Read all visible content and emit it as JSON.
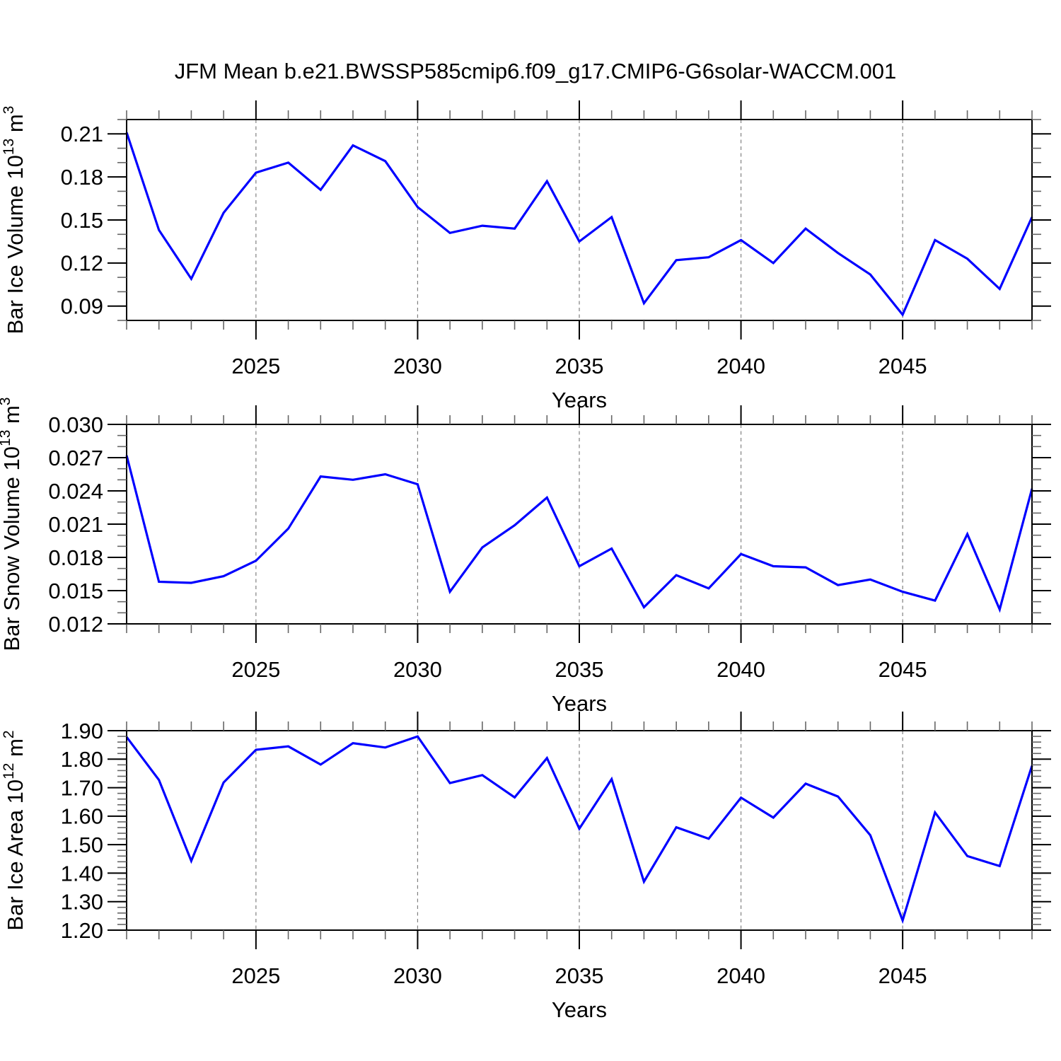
{
  "title": "JFM Mean b.e21.BWSSP585cmip6.f09_g17.CMIP6-G6solar-WACCM.001",
  "style": {
    "line_color": "#0000ff",
    "grid_color": "#808080",
    "axis_color": "#000000",
    "minor_tick_color": "#666666",
    "background": "#ffffff"
  },
  "x_axis": {
    "label": "Years",
    "range": [
      2021,
      2049
    ],
    "major_ticks": [
      2025,
      2030,
      2035,
      2040,
      2045
    ],
    "minor_step": 1,
    "years": [
      2021,
      2022,
      2023,
      2024,
      2025,
      2026,
      2027,
      2028,
      2029,
      2030,
      2031,
      2032,
      2033,
      2034,
      2035,
      2036,
      2037,
      2038,
      2039,
      2040,
      2041,
      2042,
      2043,
      2044,
      2045,
      2046,
      2047,
      2048,
      2049
    ]
  },
  "chart_data": [
    {
      "type": "line",
      "name": "bar-ice-volume",
      "ylabel_plain": "Bar Ice Volume 10^13 m^3",
      "ylabel_segments": [
        {
          "text": "Bar Ice Volume 10",
          "sup": false
        },
        {
          "text": "13",
          "sup": true
        },
        {
          "text": " m",
          "sup": false
        },
        {
          "text": "3",
          "sup": true
        }
      ],
      "xlabel": "Years",
      "ylim": [
        0.08,
        0.22
      ],
      "yticks": [
        0.09,
        0.12,
        0.15,
        0.18,
        0.21
      ],
      "ytick_decimals": 2,
      "yminor_step": 0.01,
      "grid": "vertical-dashed",
      "values": [
        0.211,
        0.143,
        0.109,
        0.155,
        0.183,
        0.19,
        0.171,
        0.202,
        0.191,
        0.159,
        0.141,
        0.146,
        0.144,
        0.177,
        0.135,
        0.152,
        0.092,
        0.122,
        0.124,
        0.136,
        0.12,
        0.144,
        0.127,
        0.112,
        0.084,
        0.136,
        0.123,
        0.102,
        0.152
      ]
    },
    {
      "type": "line",
      "name": "bar-snow-volume",
      "ylabel_plain": "Bar Snow Volume 10^13 m^3",
      "ylabel_segments": [
        {
          "text": "Bar Snow Volume 10",
          "sup": false
        },
        {
          "text": "13",
          "sup": true
        },
        {
          "text": " m",
          "sup": false
        },
        {
          "text": "3",
          "sup": true
        }
      ],
      "xlabel": "Years",
      "ylim": [
        0.012,
        0.03
      ],
      "yticks": [
        0.012,
        0.015,
        0.018,
        0.021,
        0.024,
        0.027,
        0.03
      ],
      "ytick_decimals": 3,
      "yminor_step": 0.001,
      "grid": "vertical-dashed",
      "values": [
        0.0272,
        0.0158,
        0.0157,
        0.0163,
        0.0177,
        0.0206,
        0.0253,
        0.025,
        0.0255,
        0.0246,
        0.0149,
        0.0189,
        0.0209,
        0.0234,
        0.0172,
        0.0188,
        0.0135,
        0.0164,
        0.0152,
        0.0183,
        0.0172,
        0.0171,
        0.0155,
        0.016,
        0.0149,
        0.0141,
        0.0201,
        0.0133,
        0.0242
      ]
    },
    {
      "type": "line",
      "name": "bar-ice-area",
      "ylabel_plain": "Bar Ice Area 10^12 m^2",
      "ylabel_segments": [
        {
          "text": "Bar Ice Area 10",
          "sup": false
        },
        {
          "text": "12",
          "sup": true
        },
        {
          "text": " m",
          "sup": false
        },
        {
          "text": "2",
          "sup": true
        }
      ],
      "xlabel": "Years",
      "ylim": [
        1.2,
        1.9
      ],
      "yticks": [
        1.2,
        1.3,
        1.4,
        1.5,
        1.6,
        1.7,
        1.8,
        1.9
      ],
      "ytick_decimals": 2,
      "yminor_step": 0.02,
      "grid": "vertical-dashed",
      "values": [
        1.878,
        1.727,
        1.443,
        1.718,
        1.833,
        1.845,
        1.781,
        1.856,
        1.841,
        1.88,
        1.716,
        1.744,
        1.666,
        1.804,
        1.556,
        1.73,
        1.37,
        1.561,
        1.521,
        1.665,
        1.595,
        1.714,
        1.669,
        1.533,
        1.234,
        1.613,
        1.46,
        1.425,
        1.777
      ]
    }
  ]
}
